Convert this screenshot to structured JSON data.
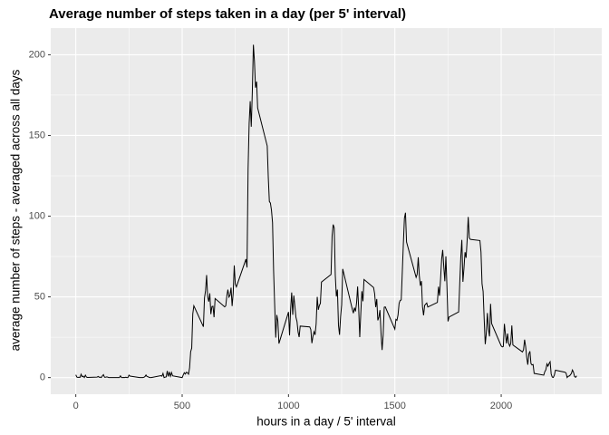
{
  "chart_data": {
    "type": "line",
    "title": "Average number of steps taken in a day (per 5' interval)",
    "x_label": "hours in a day / 5' interval",
    "y_label": "average number of steps - averaged across all days",
    "color": "#000000",
    "grid": true,
    "xlim": [
      -117.75,
      2472.75
    ],
    "xticks": [
      0,
      500,
      1000,
      1500,
      2000
    ],
    "x_minor_grid": [
      250,
      750,
      1250,
      1750,
      2250
    ],
    "ylim": [
      -10.3,
      216.5
    ],
    "yticks": [
      0,
      50,
      100,
      150,
      200
    ],
    "y_minor_grid": [
      25,
      75,
      125,
      175
    ],
    "x": [
      0,
      5,
      10,
      15,
      20,
      25,
      30,
      35,
      40,
      45,
      50,
      55,
      100,
      105,
      110,
      115,
      120,
      125,
      130,
      135,
      140,
      145,
      150,
      155,
      200,
      205,
      210,
      215,
      220,
      225,
      230,
      235,
      240,
      245,
      250,
      255,
      300,
      305,
      310,
      315,
      320,
      325,
      330,
      335,
      340,
      345,
      350,
      355,
      400,
      405,
      410,
      415,
      420,
      425,
      430,
      435,
      440,
      445,
      450,
      455,
      500,
      505,
      510,
      515,
      520,
      525,
      530,
      535,
      540,
      545,
      550,
      555,
      600,
      605,
      610,
      615,
      620,
      625,
      630,
      635,
      640,
      645,
      650,
      655,
      700,
      705,
      710,
      715,
      720,
      725,
      730,
      735,
      740,
      745,
      750,
      755,
      800,
      805,
      810,
      815,
      820,
      825,
      830,
      835,
      840,
      845,
      850,
      855,
      900,
      905,
      910,
      915,
      920,
      925,
      930,
      935,
      940,
      945,
      950,
      955,
      1000,
      1005,
      1010,
      1015,
      1020,
      1025,
      1030,
      1035,
      1040,
      1045,
      1050,
      1055,
      1100,
      1105,
      1110,
      1115,
      1120,
      1125,
      1130,
      1135,
      1140,
      1145,
      1150,
      1155,
      1200,
      1205,
      1210,
      1215,
      1220,
      1225,
      1230,
      1235,
      1240,
      1245,
      1250,
      1255,
      1300,
      1305,
      1310,
      1315,
      1320,
      1325,
      1330,
      1335,
      1340,
      1345,
      1350,
      1355,
      1400,
      1405,
      1410,
      1415,
      1420,
      1425,
      1430,
      1435,
      1440,
      1445,
      1450,
      1455,
      1500,
      1505,
      1510,
      1515,
      1520,
      1525,
      1530,
      1535,
      1540,
      1545,
      1550,
      1555,
      1600,
      1605,
      1610,
      1615,
      1620,
      1625,
      1630,
      1635,
      1640,
      1645,
      1650,
      1655,
      1700,
      1705,
      1710,
      1715,
      1720,
      1725,
      1730,
      1735,
      1740,
      1745,
      1750,
      1755,
      1800,
      1805,
      1810,
      1815,
      1820,
      1825,
      1830,
      1835,
      1840,
      1845,
      1850,
      1855,
      1900,
      1905,
      1910,
      1915,
      1920,
      1925,
      1930,
      1935,
      1940,
      1945,
      1950,
      1955,
      2000,
      2005,
      2010,
      2015,
      2020,
      2025,
      2030,
      2035,
      2040,
      2045,
      2050,
      2055,
      2100,
      2105,
      2110,
      2115,
      2120,
      2125,
      2130,
      2135,
      2140,
      2145,
      2150,
      2155,
      2200,
      2205,
      2210,
      2215,
      2220,
      2225,
      2230,
      2235,
      2240,
      2245,
      2250,
      2255,
      2300,
      2305,
      2310,
      2315,
      2320,
      2325,
      2330,
      2335,
      2340,
      2345,
      2350,
      2355
    ],
    "values": [
      1.7,
      0.3,
      0.1,
      0.2,
      0.1,
      2.1,
      0.5,
      0.9,
      0,
      1.5,
      0.3,
      0.1,
      0.3,
      0.7,
      0.2,
      0.3,
      0,
      1.1,
      1.8,
      0.2,
      0.2,
      0.4,
      0.3,
      0,
      0,
      0,
      1.1,
      0,
      0,
      0.1,
      0,
      0.2,
      0,
      0,
      1.5,
      0.9,
      0,
      0,
      0,
      0,
      0.2,
      0.6,
      1.6,
      0.6,
      0.5,
      0.1,
      0,
      0,
      1.2,
      0.9,
      2.6,
      0,
      0.3,
      0.4,
      4.1,
      0.7,
      3.5,
      0.8,
      3.1,
      1.1,
      0,
      1.6,
      3,
      2.2,
      3.3,
      3,
      2.1,
      6.1,
      16,
      18.3,
      39.5,
      44.5,
      31.5,
      49.3,
      53.8,
      63.5,
      50,
      47.1,
      52.2,
      39.3,
      44,
      44.2,
      37.4,
      49,
      43.8,
      44.4,
      50.5,
      54.5,
      49.9,
      51,
      55.7,
      44.3,
      52.3,
      69.5,
      57.8,
      56.2,
      73.4,
      68.2,
      129.4,
      157.5,
      171.2,
      155.4,
      177.3,
      206.2,
      195.9,
      179.6,
      183.4,
      167,
      143.5,
      124,
      109.1,
      108.1,
      103.7,
      96,
      66.2,
      45.2,
      24.8,
      38.8,
      35,
      21.1,
      40.6,
      26.1,
      42.4,
      52.7,
      38.9,
      50.8,
      44.3,
      37.4,
      34.7,
      28.3,
      25.1,
      31.9,
      31.4,
      29.7,
      21.3,
      25.5,
      28.4,
      26.5,
      33.4,
      50,
      42,
      44.6,
      46,
      59.2,
      63.9,
      87.7,
      94.8,
      92.8,
      63.4,
      50.2,
      54.5,
      32.4,
      26.5,
      37.7,
      45.1,
      67.3,
      42.3,
      39.9,
      43.3,
      41,
      46.2,
      56.4,
      42.8,
      25.1,
      40,
      53.5,
      47.3,
      60.8,
      55.8,
      52,
      43.6,
      48.7,
      35.5,
      37.5,
      41.8,
      27.5,
      17.1,
      26.1,
      43.6,
      43.8,
      30,
      36.1,
      35.5,
      38.8,
      46,
      47.8,
      48.1,
      65.3,
      82.9,
      98.7,
      102.1,
      84,
      62.1,
      64.1,
      74.5,
      63.2,
      56.9,
      59.8,
      43.9,
      38.6,
      44.7,
      45.5,
      46.2,
      43.7,
      46.6,
      56.3,
      50.7,
      61.2,
      73.4,
      79.1,
      68.9,
      59.7,
      75.1,
      56.5,
      34.8,
      37.5,
      40.7,
      58,
      74.7,
      85.3,
      59.3,
      67.8,
      77.7,
      74.2,
      85.3,
      99.5,
      86.6,
      85.6,
      84.9,
      77.8,
      58,
      53.4,
      36.3,
      20.7,
      27.4,
      40,
      30.2,
      25.5,
      45.7,
      33.5,
      19.6,
      19,
      19.3,
      33.3,
      26.8,
      21.2,
      27.3,
      21.3,
      19.5,
      21.3,
      32.3,
      20.2,
      15.9,
      17.2,
      23.5,
      19.2,
      12.5,
      8,
      14.7,
      16.3,
      8.7,
      7.8,
      8.1,
      2.6,
      1.5,
      3.7,
      4.8,
      8.5,
      7.1,
      8.7,
      9.8,
      2.2,
      0.3,
      0.1,
      1.6,
      4.6,
      3.3,
      2.8,
      0,
      0.8,
      1,
      1.6,
      2.6,
      4.7,
      3.3,
      0.6,
      0.2,
      1.1
    ]
  }
}
